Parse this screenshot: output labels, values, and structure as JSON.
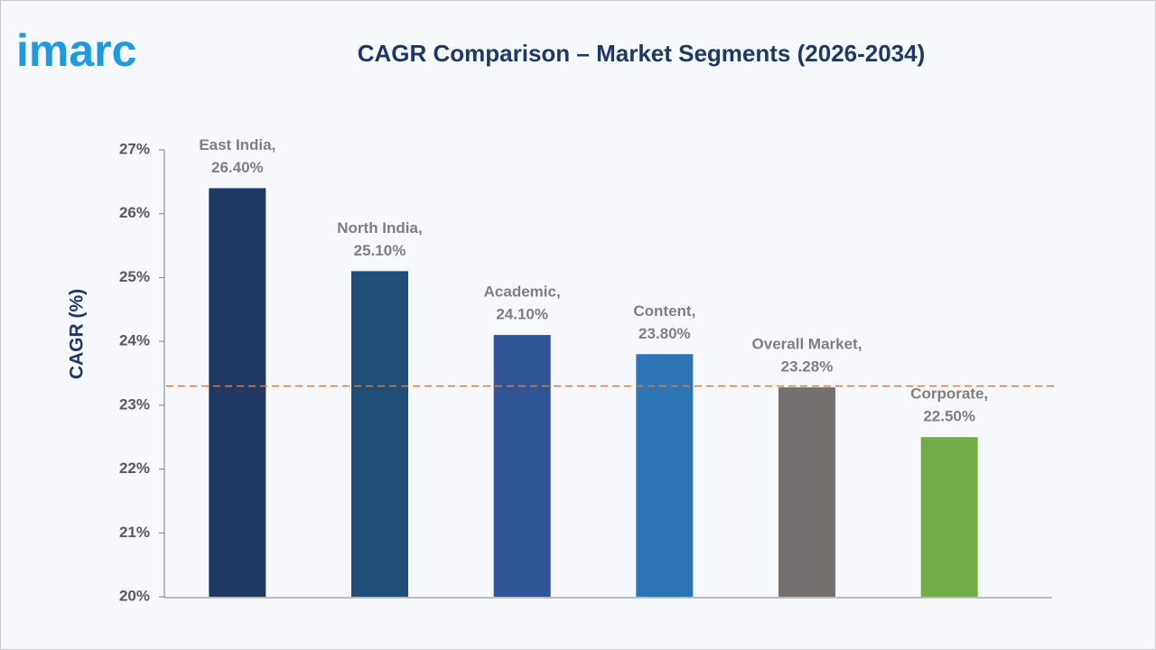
{
  "logo": "imarc",
  "chart_data": {
    "type": "bar",
    "title": "CAGR Comparison – Market Segments (2026-2034)",
    "y_label": "CAGR (%)",
    "categories": [
      "East India,",
      "North India,",
      "Academic,",
      "Content,",
      "Overall Market,",
      "Corporate,"
    ],
    "values": [
      26.4,
      25.1,
      24.1,
      23.8,
      23.28,
      22.5
    ],
    "value_labels": [
      "26.40%",
      "25.10%",
      "24.10%",
      "23.80%",
      "23.28%",
      "22.50%"
    ],
    "colors": [
      "#1f3864",
      "#1f4e79",
      "#2f5597",
      "#2e75b6",
      "#767171",
      "#70ad47"
    ],
    "ylim": [
      20,
      27
    ],
    "yticks": [
      {
        "value": 20,
        "label": "20%"
      },
      {
        "value": 21,
        "label": "21%"
      },
      {
        "value": 22,
        "label": "22%"
      },
      {
        "value": 23,
        "label": "23%"
      },
      {
        "value": 24,
        "label": "24%"
      },
      {
        "value": 25,
        "label": "25%"
      },
      {
        "value": 26,
        "label": "26%"
      },
      {
        "value": 27,
        "label": "27%"
      }
    ],
    "reference_line": {
      "value": 23.3,
      "color": "#e07b39"
    },
    "grid": false
  }
}
